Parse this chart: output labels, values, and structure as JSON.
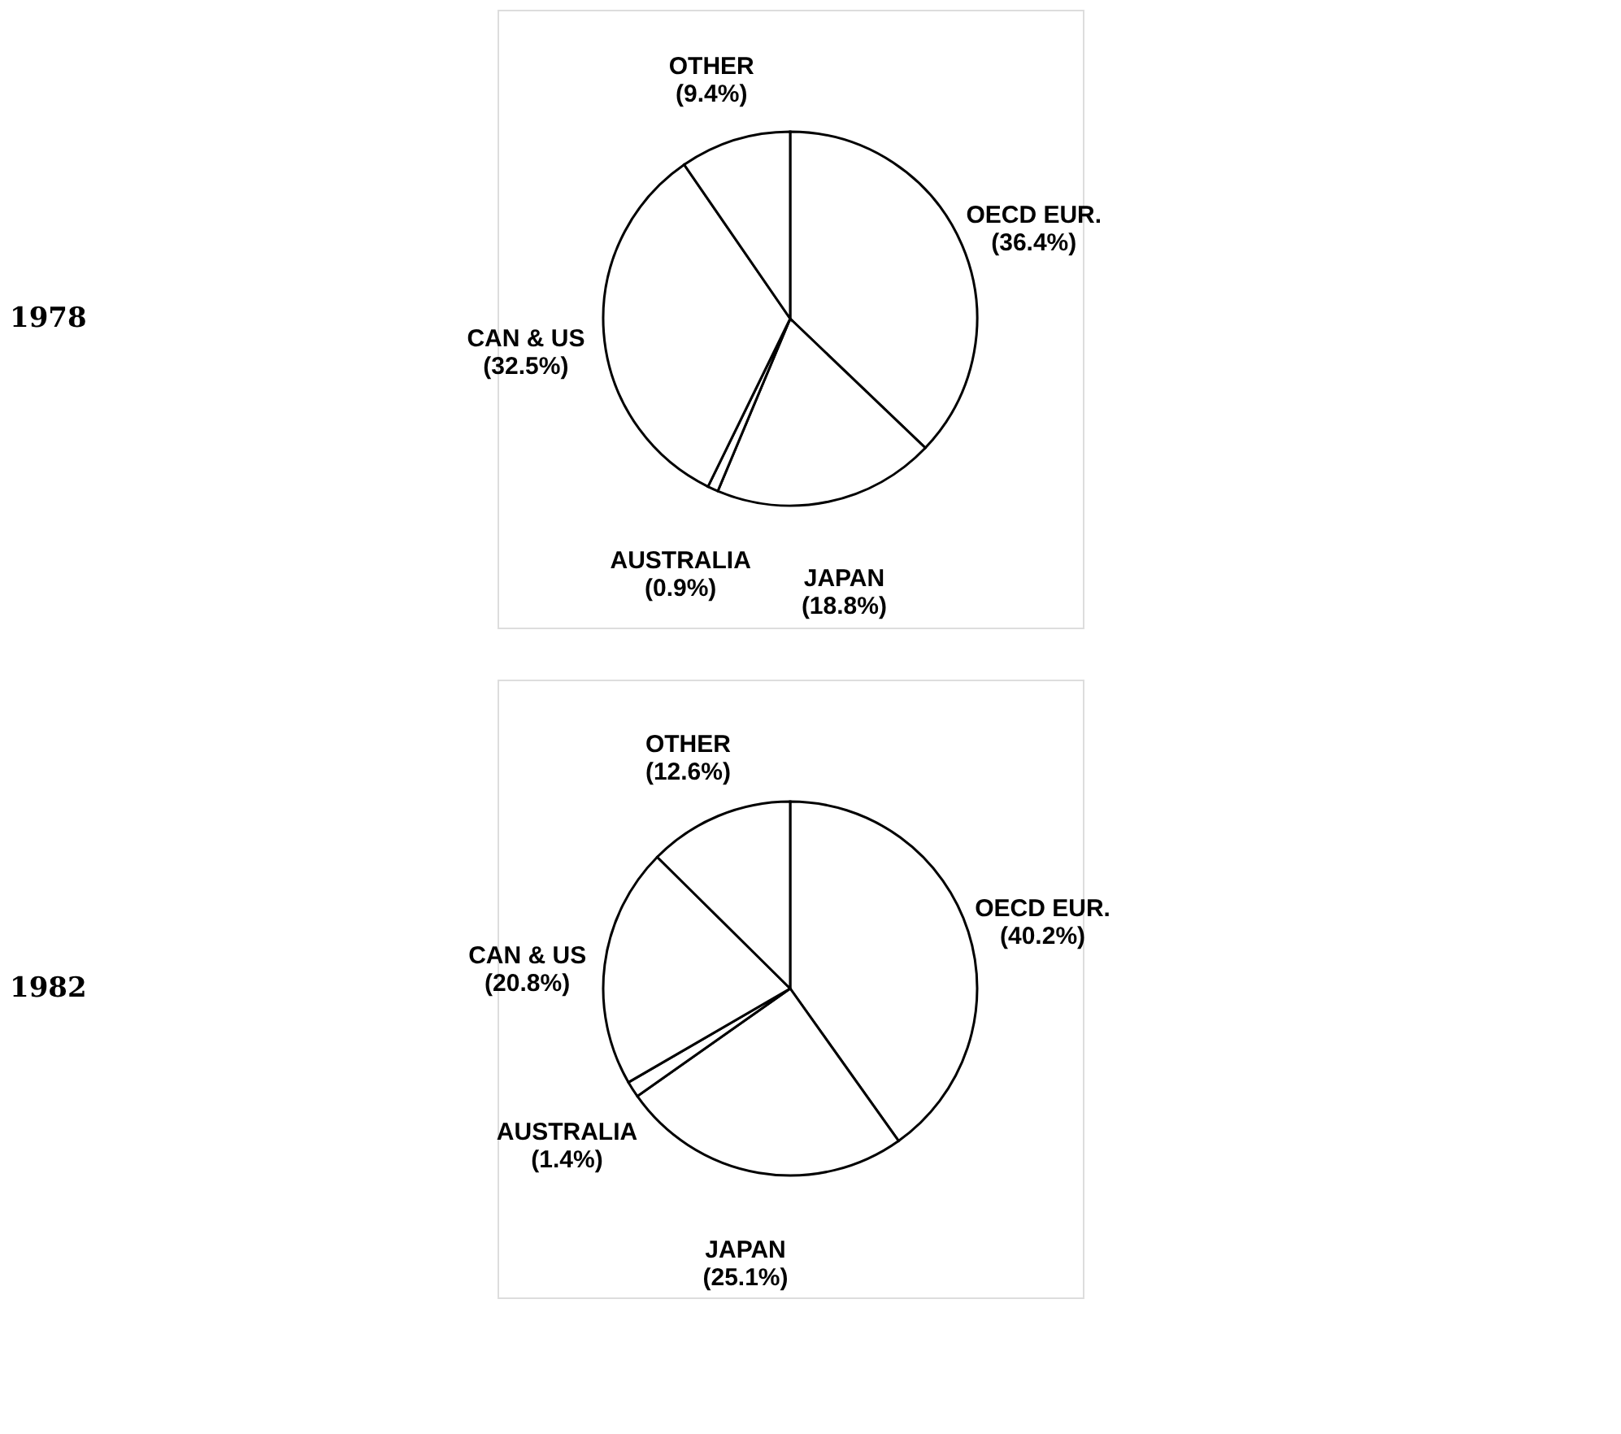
{
  "chart_data": [
    {
      "type": "pie",
      "title": "1978",
      "categories": [
        "OECD EUR.",
        "JAPAN",
        "AUSTRALIA",
        "CAN & US",
        "OTHER"
      ],
      "values": [
        36.4,
        18.8,
        0.9,
        32.5,
        9.4
      ],
      "value_labels": [
        "(36.4%)",
        "(18.8%)",
        "(0.9%)",
        "(32.5%)",
        "(9.4%)"
      ],
      "colors": [
        "#ffffff",
        "#ffffff",
        "#ffffff",
        "#ffffff",
        "#ffffff"
      ],
      "legend": false
    },
    {
      "type": "pie",
      "title": "1982",
      "categories": [
        "OECD EUR.",
        "JAPAN",
        "AUSTRALIA",
        "CAN & US",
        "OTHER"
      ],
      "values": [
        40.2,
        25.1,
        1.4,
        20.8,
        12.6
      ],
      "value_labels": [
        "(40.2%)",
        "(25.1%)",
        "(1.4%)",
        "(20.8%)",
        "(12.6%)"
      ],
      "colors": [
        "#ffffff",
        "#ffffff",
        "#ffffff",
        "#ffffff",
        "#ffffff"
      ],
      "legend": false
    }
  ]
}
